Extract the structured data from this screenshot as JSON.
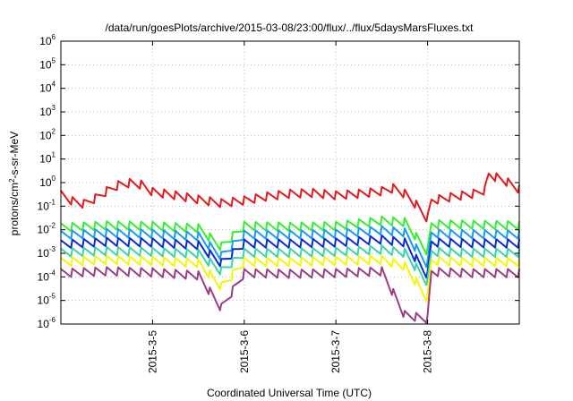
{
  "chart_data": {
    "type": "line",
    "title": "/data/run/goesPlots/archive/2015-03-08/23:00/flux/../flux/5daysMarsFluxes.txt",
    "xlabel": "Coordinated Universal Time (UTC)",
    "ylabel": "protons/cm2-s-sr-MeV",
    "ylabel_parts": {
      "pre": "protons/cm",
      "sup": "2",
      "post": "-s-sr-MeV"
    },
    "y_scale": "log",
    "ylim": [
      1e-06,
      1000000.0
    ],
    "y_ticks": [
      {
        "value": 1e-06,
        "base": "10",
        "exp": "-6"
      },
      {
        "value": 1e-05,
        "base": "10",
        "exp": "-5"
      },
      {
        "value": 0.0001,
        "base": "10",
        "exp": "-4"
      },
      {
        "value": 0.001,
        "base": "10",
        "exp": "-3"
      },
      {
        "value": 0.01,
        "base": "10",
        "exp": "-2"
      },
      {
        "value": 0.1,
        "base": "10",
        "exp": "-1"
      },
      {
        "value": 1.0,
        "base": "10",
        "exp": "0"
      },
      {
        "value": 10.0,
        "base": "10",
        "exp": "1"
      },
      {
        "value": 100.0,
        "base": "10",
        "exp": "2"
      },
      {
        "value": 1000.0,
        "base": "10",
        "exp": "3"
      },
      {
        "value": 10000.0,
        "base": "10",
        "exp": "4"
      },
      {
        "value": 100000.0,
        "base": "10",
        "exp": "5"
      },
      {
        "value": 1000000.0,
        "base": "10",
        "exp": "6"
      }
    ],
    "xlim": [
      "2015-03-04T00:00",
      "2015-03-09T00:00"
    ],
    "x_ticks": [
      {
        "value": "2015-03-05T00:00",
        "label": "2015-3-5"
      },
      {
        "value": "2015-03-06T00:00",
        "label": "2015-3-6"
      },
      {
        "value": "2015-03-07T00:00",
        "label": "2015-3-7"
      },
      {
        "value": "2015-03-08T00:00",
        "label": "2015-3-8"
      }
    ],
    "grid": true,
    "legend": "none",
    "sawtooth_period_hours": 3,
    "series": [
      {
        "color": "#e41a1c",
        "points": [
          [
            "2015-03-04T00:00",
            0.32
          ],
          [
            "2015-03-04T03:00",
            0.17
          ],
          [
            "2015-03-04T06:00",
            0.13
          ],
          [
            "2015-03-04T09:00",
            0.22
          ],
          [
            "2015-03-04T12:00",
            0.45
          ],
          [
            "2015-03-04T15:00",
            0.8
          ],
          [
            "2015-03-04T18:00",
            1.0
          ],
          [
            "2015-03-04T21:00",
            0.85
          ],
          [
            "2015-03-05T00:00",
            0.42
          ],
          [
            "2015-03-05T06:00",
            0.3
          ],
          [
            "2015-03-05T12:00",
            0.2
          ],
          [
            "2015-03-05T18:00",
            0.14
          ],
          [
            "2015-03-06T00:00",
            0.18
          ],
          [
            "2015-03-06T06:00",
            0.27
          ],
          [
            "2015-03-06T12:00",
            0.35
          ],
          [
            "2015-03-06T18:00",
            0.38
          ],
          [
            "2015-03-07T00:00",
            0.3
          ],
          [
            "2015-03-07T06:00",
            0.35
          ],
          [
            "2015-03-07T12:00",
            0.45
          ],
          [
            "2015-03-07T15:00",
            0.6
          ],
          [
            "2015-03-07T18:00",
            0.35
          ],
          [
            "2015-03-07T21:00",
            0.12
          ],
          [
            "2015-03-08T00:00",
            0.03
          ],
          [
            "2015-03-08T01:00",
            0.18
          ],
          [
            "2015-03-08T06:00",
            0.25
          ],
          [
            "2015-03-08T12:00",
            0.35
          ],
          [
            "2015-03-08T15:00",
            0.5
          ],
          [
            "2015-03-08T16:00",
            2.3
          ],
          [
            "2015-03-08T20:00",
            1.3
          ],
          [
            "2015-03-09T00:00",
            0.55
          ]
        ]
      },
      {
        "color": "#33ee33",
        "points": [
          [
            "2015-03-04T00:00",
            0.013
          ],
          [
            "2015-03-04T12:00",
            0.016
          ],
          [
            "2015-03-05T00:00",
            0.015
          ],
          [
            "2015-03-05T12:00",
            0.012
          ],
          [
            "2015-03-05T18:00",
            0.002
          ],
          [
            "2015-03-06T00:00",
            0.015
          ],
          [
            "2015-03-06T12:00",
            0.014
          ],
          [
            "2015-03-07T00:00",
            0.015
          ],
          [
            "2015-03-07T12:00",
            0.025
          ],
          [
            "2015-03-07T18:00",
            0.022
          ],
          [
            "2015-03-08T00:00",
            0.0012
          ],
          [
            "2015-03-08T01:00",
            0.018
          ],
          [
            "2015-03-08T12:00",
            0.017
          ],
          [
            "2015-03-09T00:00",
            0.016
          ]
        ]
      },
      {
        "color": "#1a9bf0",
        "points": [
          [
            "2015-03-04T00:00",
            0.0062
          ],
          [
            "2015-03-04T12:00",
            0.0075
          ],
          [
            "2015-03-05T00:00",
            0.007
          ],
          [
            "2015-03-05T12:00",
            0.0055
          ],
          [
            "2015-03-05T18:00",
            0.0008
          ],
          [
            "2015-03-06T00:00",
            0.0065
          ],
          [
            "2015-03-06T12:00",
            0.0065
          ],
          [
            "2015-03-07T00:00",
            0.007
          ],
          [
            "2015-03-07T12:00",
            0.01
          ],
          [
            "2015-03-07T18:00",
            0.008
          ],
          [
            "2015-03-08T00:00",
            0.00035
          ],
          [
            "2015-03-08T01:00",
            0.0072
          ],
          [
            "2015-03-08T12:00",
            0.0068
          ],
          [
            "2015-03-09T00:00",
            0.0065
          ]
        ]
      },
      {
        "color": "#0a2ad6",
        "points": [
          [
            "2015-03-04T00:00",
            0.0025
          ],
          [
            "2015-03-04T12:00",
            0.0032
          ],
          [
            "2015-03-05T00:00",
            0.003
          ],
          [
            "2015-03-05T12:00",
            0.0023
          ],
          [
            "2015-03-05T18:00",
            0.0004
          ],
          [
            "2015-03-06T00:00",
            0.0027
          ],
          [
            "2015-03-06T12:00",
            0.0027
          ],
          [
            "2015-03-07T00:00",
            0.003
          ],
          [
            "2015-03-07T12:00",
            0.004
          ],
          [
            "2015-03-07T18:00",
            0.003
          ],
          [
            "2015-03-08T00:00",
            0.00012
          ],
          [
            "2015-03-08T01:00",
            0.003
          ],
          [
            "2015-03-08T12:00",
            0.0028
          ],
          [
            "2015-03-09T00:00",
            0.0027
          ]
        ]
      },
      {
        "color": "#3bd4a8",
        "points": [
          [
            "2015-03-04T00:00",
            0.0011
          ],
          [
            "2015-03-04T12:00",
            0.0013
          ],
          [
            "2015-03-05T00:00",
            0.0012
          ],
          [
            "2015-03-05T12:00",
            0.001
          ],
          [
            "2015-03-05T18:00",
            0.00018
          ],
          [
            "2015-03-06T00:00",
            0.0011
          ],
          [
            "2015-03-06T12:00",
            0.0011
          ],
          [
            "2015-03-07T00:00",
            0.0012
          ],
          [
            "2015-03-07T12:00",
            0.0015
          ],
          [
            "2015-03-07T18:00",
            0.0011
          ],
          [
            "2015-03-08T00:00",
            6e-05
          ],
          [
            "2015-03-08T01:00",
            0.0012
          ],
          [
            "2015-03-08T12:00",
            0.0011
          ],
          [
            "2015-03-09T00:00",
            0.0011
          ]
        ]
      },
      {
        "color": "#f5f50a",
        "points": [
          [
            "2015-03-04T00:00",
            0.00045
          ],
          [
            "2015-03-04T12:00",
            0.00055
          ],
          [
            "2015-03-05T00:00",
            0.0005
          ],
          [
            "2015-03-05T12:00",
            0.0004
          ],
          [
            "2015-03-05T18:00",
            4e-05
          ],
          [
            "2015-03-06T00:00",
            0.00045
          ],
          [
            "2015-03-06T12:00",
            0.00045
          ],
          [
            "2015-03-07T00:00",
            0.0005
          ],
          [
            "2015-03-07T12:00",
            0.00055
          ],
          [
            "2015-03-07T18:00",
            0.0003
          ],
          [
            "2015-03-08T00:00",
            1.2e-05
          ],
          [
            "2015-03-08T01:00",
            0.0005
          ],
          [
            "2015-03-08T12:00",
            0.00045
          ],
          [
            "2015-03-09T00:00",
            0.00045
          ]
        ]
      },
      {
        "color": "#9a3e86",
        "points": [
          [
            "2015-03-04T00:00",
            0.00015
          ],
          [
            "2015-03-04T12:00",
            0.00018
          ],
          [
            "2015-03-05T00:00",
            0.00016
          ],
          [
            "2015-03-05T12:00",
            0.00012
          ],
          [
            "2015-03-05T18:00",
            5e-06
          ],
          [
            "2015-03-06T00:00",
            0.00015
          ],
          [
            "2015-03-06T12:00",
            0.00014
          ],
          [
            "2015-03-07T00:00",
            0.00015
          ],
          [
            "2015-03-07T12:00",
            0.00018
          ],
          [
            "2015-03-07T18:00",
            2.5e-06
          ],
          [
            "2015-03-08T00:00",
            1.7e-06
          ],
          [
            "2015-03-08T01:00",
            0.00017
          ],
          [
            "2015-03-08T12:00",
            0.00015
          ],
          [
            "2015-03-09T00:00",
            0.00015
          ]
        ]
      }
    ]
  }
}
